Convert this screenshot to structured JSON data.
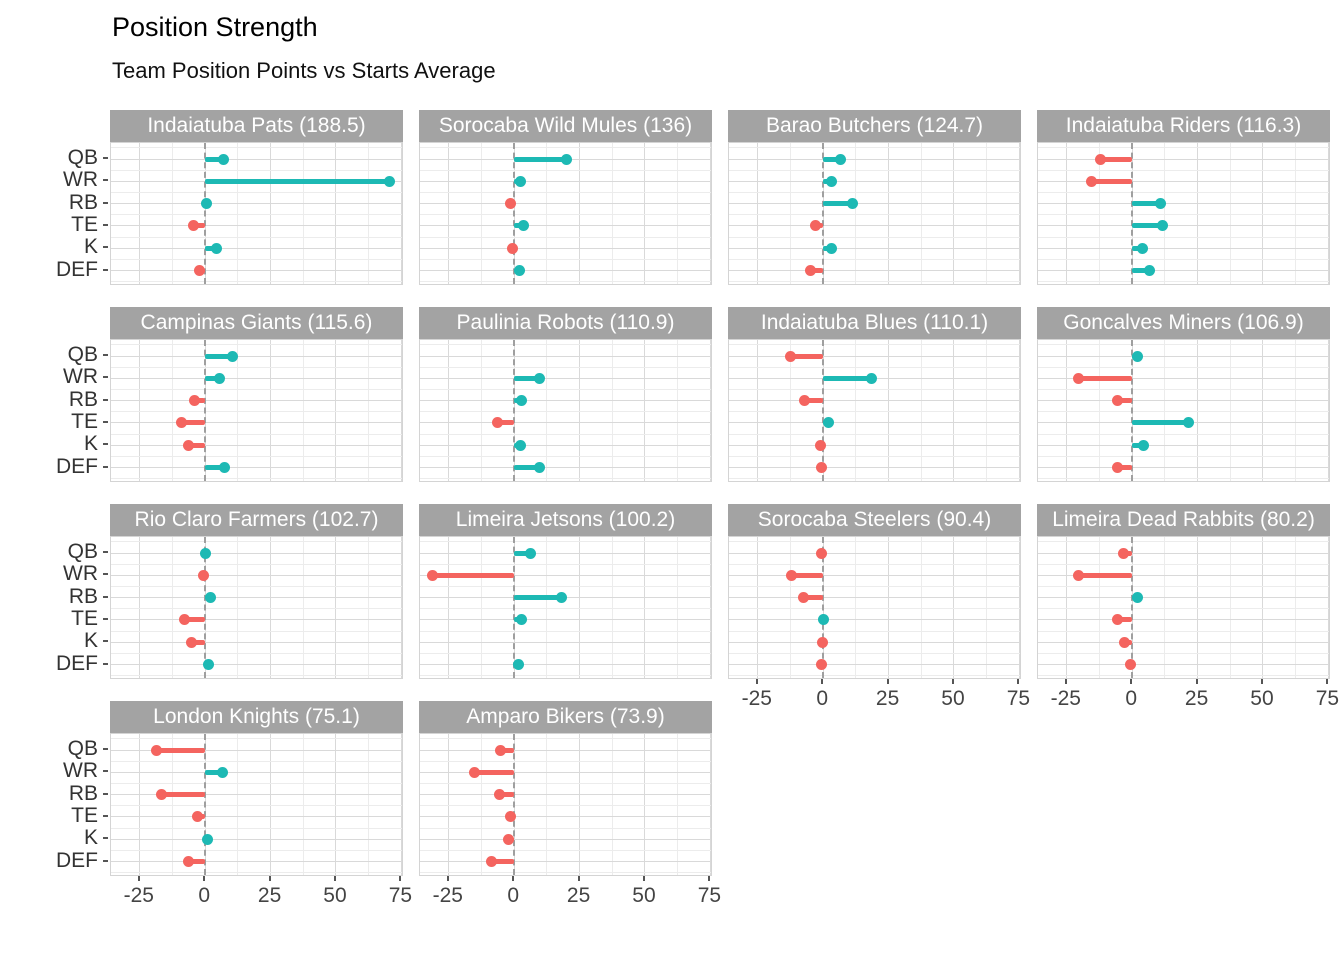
{
  "title": "Position Strength",
  "subtitle": "Team Position Points vs Starts Average",
  "chart_data": {
    "type": "bar",
    "style": "faceted-horizontal-lollipop-diverging-from-zero",
    "title": "Position Strength",
    "subtitle": "Team Position Points vs Starts Average",
    "categories": [
      "QB",
      "WR",
      "RB",
      "TE",
      "K",
      "DEF"
    ],
    "x_tick_labels": [
      "-25",
      "0",
      "25",
      "50",
      "75"
    ],
    "x_tick_values": [
      -25,
      0,
      25,
      50,
      75
    ],
    "xlim": [
      -36,
      76
    ],
    "grid": true,
    "legend": "none",
    "facet_columns": 4,
    "colors": {
      "positive": "#1db9b4",
      "negative": "#f4645f",
      "strip_bg": "#a3a3a3",
      "strip_text": "#ffffff",
      "zero_line": "#9f9f9f"
    },
    "series": [
      {
        "label": "Indaiatuba Pats (188.5)",
        "team": "Indaiatuba Pats",
        "total": 188.5,
        "values": [
          7,
          70.5,
          0.5,
          -4.5,
          4.5,
          -2
        ]
      },
      {
        "label": "Sorocaba Wild Mules (136)",
        "team": "Sorocaba Wild Mules",
        "total": 136,
        "values": [
          20,
          2.4,
          -1.5,
          3.4,
          -0.8,
          2
        ]
      },
      {
        "label": "Barao Butchers (124.7)",
        "team": "Barao Butchers",
        "total": 124.7,
        "values": [
          6.5,
          3.2,
          11.3,
          -2.8,
          3.3,
          -5
        ]
      },
      {
        "label": "Indaiatuba Riders (116.3)",
        "team": "Indaiatuba Riders",
        "total": 116.3,
        "values": [
          -12,
          -15.5,
          11,
          11.4,
          3.8,
          6.6
        ]
      },
      {
        "label": "Campinas Giants (115.6)",
        "team": "Campinas Giants",
        "total": 115.6,
        "values": [
          10.3,
          5.6,
          -4,
          -8.9,
          -6.4,
          7.4
        ]
      },
      {
        "label": "Paulinia Robots (110.9)",
        "team": "Paulinia Robots",
        "total": 110.9,
        "values": [
          null,
          9.6,
          2.8,
          -6.4,
          2.4,
          9.6
        ]
      },
      {
        "label": "Indaiatuba Blues (110.1)",
        "team": "Indaiatuba Blues",
        "total": 110.1,
        "values": [
          -12.5,
          18.5,
          -7,
          2.2,
          -0.9,
          -0.6
        ]
      },
      {
        "label": "Goncalves Miners (106.9)",
        "team": "Goncalves Miners",
        "total": 106.9,
        "values": [
          2.2,
          -20.5,
          -5.7,
          21.4,
          4.2,
          -5.5
        ]
      },
      {
        "label": "Rio Claro Farmers (102.7)",
        "team": "Rio Claro Farmers",
        "total": 102.7,
        "values": [
          0.2,
          -0.6,
          2.2,
          -8,
          -5.2,
          1.3
        ]
      },
      {
        "label": "Limeira Jetsons (100.2)",
        "team": "Limeira Jetsons",
        "total": 100.2,
        "values": [
          6.3,
          -31.4,
          18,
          2.8,
          null,
          1.8
        ]
      },
      {
        "label": "Sorocaba Steelers (90.4)",
        "team": "Sorocaba Steelers",
        "total": 90.4,
        "values": [
          -0.7,
          -12.1,
          -7.7,
          0.2,
          -0.3,
          -0.7
        ]
      },
      {
        "label": "Limeira Dead Rabbits (80.2)",
        "team": "Limeira Dead Rabbits",
        "total": 80.2,
        "values": [
          -3.3,
          -20.4,
          1.9,
          -5.5,
          -2.9,
          -0.5
        ]
      },
      {
        "label": "London Knights (75.1)",
        "team": "London Knights",
        "total": 75.1,
        "values": [
          -18.5,
          6.5,
          -16.7,
          -2.9,
          0.9,
          -6.5
        ]
      },
      {
        "label": "Amparo Bikers (73.9)",
        "team": "Amparo Bikers",
        "total": 73.9,
        "values": [
          -5.1,
          -15.3,
          -5.5,
          -1.3,
          -2.3,
          -8.7
        ]
      }
    ]
  }
}
